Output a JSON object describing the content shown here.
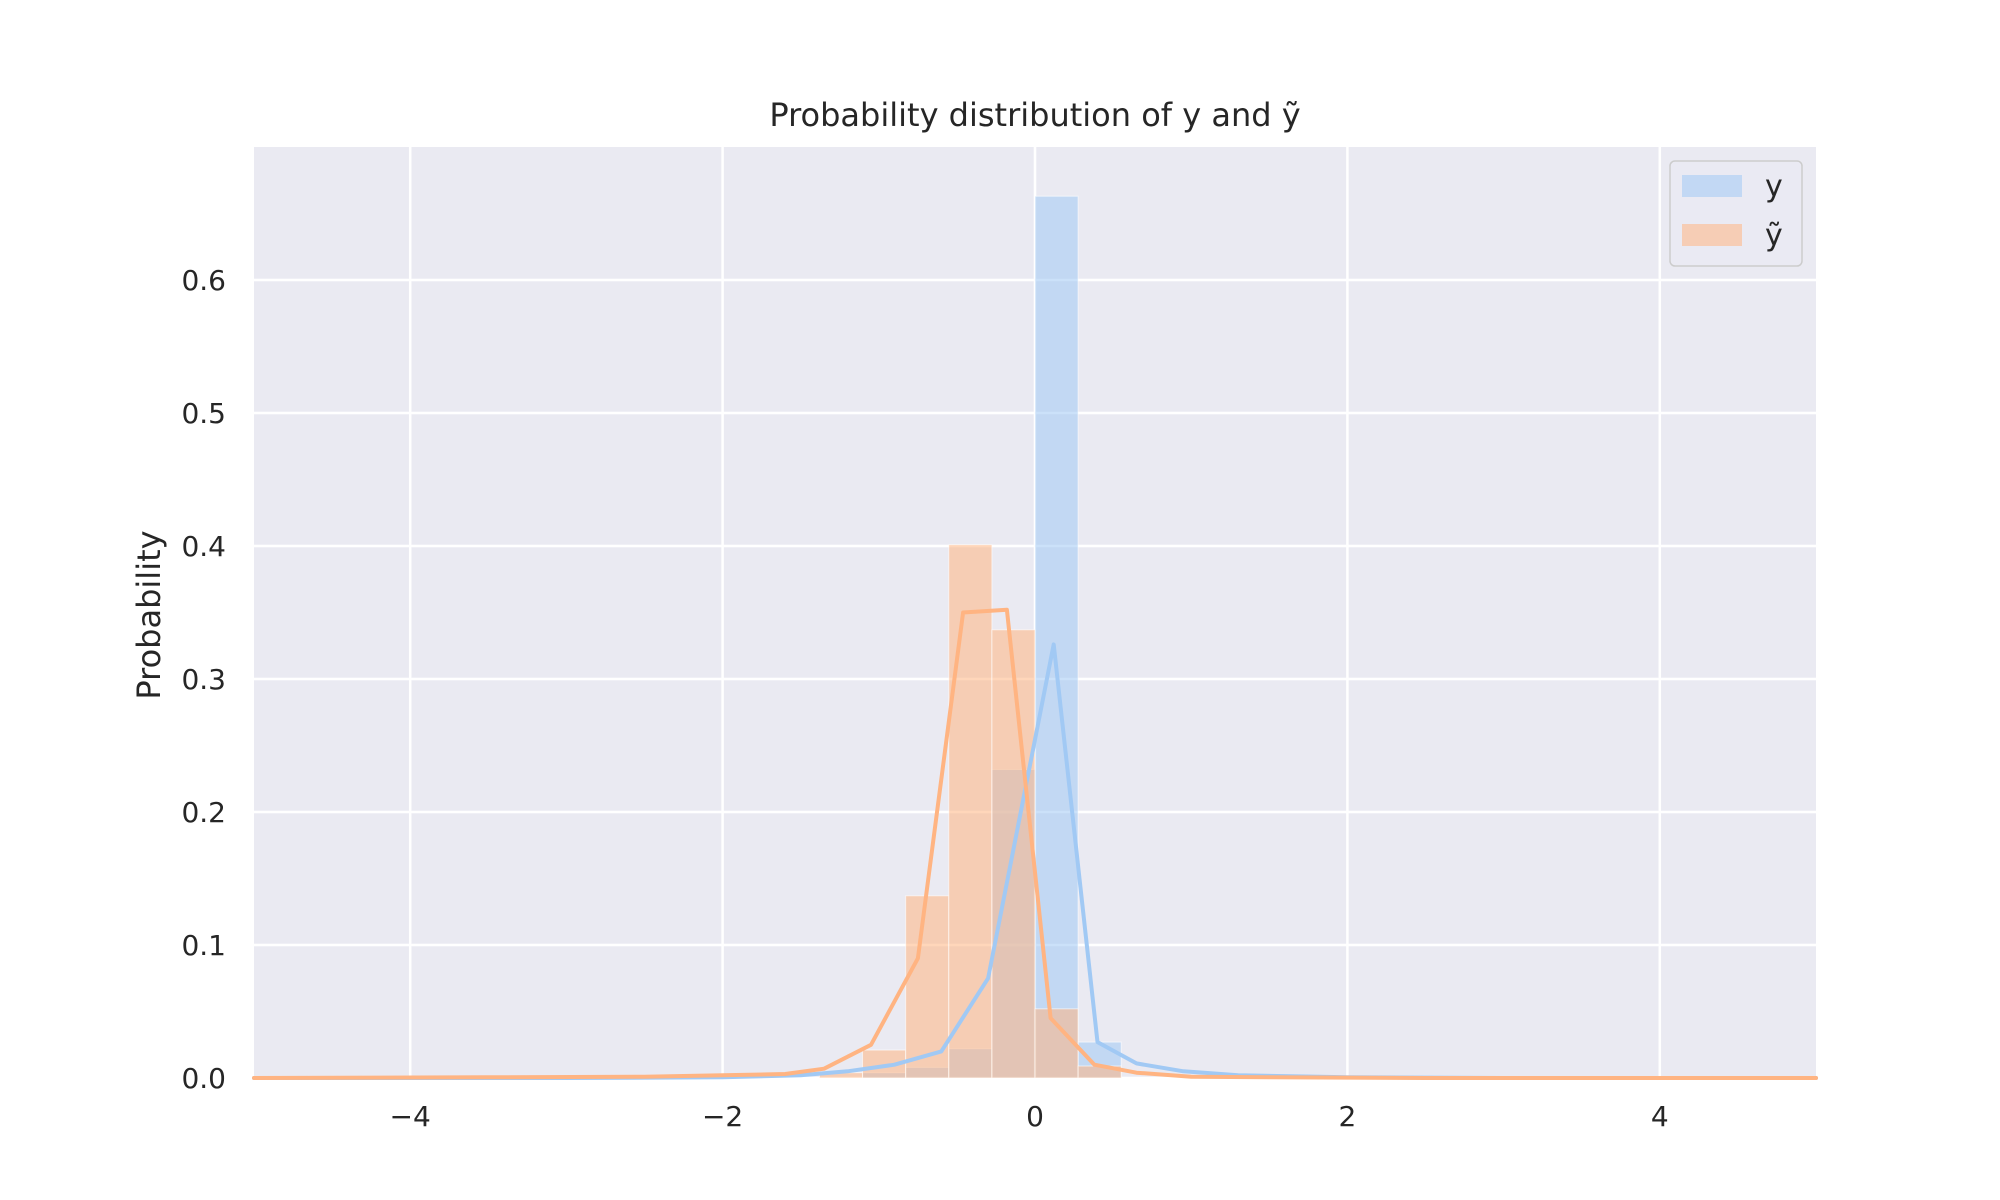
{
  "chart_data": {
    "type": "histogram",
    "title": "Probability distribution of y and ỹ",
    "xlabel": "",
    "ylabel": "Probability",
    "xlim": [
      -5,
      5
    ],
    "ylim": [
      0,
      0.7
    ],
    "xticks": [
      -4,
      -2,
      0,
      2,
      4
    ],
    "xtick_labels": [
      "−4",
      "−2",
      "0",
      "2",
      "4"
    ],
    "yticks": [
      0.0,
      0.1,
      0.2,
      0.3,
      0.4,
      0.5,
      0.6
    ],
    "ytick_labels": [
      "0.0",
      "0.1",
      "0.2",
      "0.3",
      "0.4",
      "0.5",
      "0.6"
    ],
    "grid": true,
    "legend_position": "top-right",
    "bin_width": 0.276,
    "series": [
      {
        "name": "y",
        "color": "#a1c9f4",
        "bin_left_edges": [
          -1.104,
          -0.828,
          -0.552,
          -0.276,
          0.0,
          0.276
        ],
        "bar_heights": [
          0.004,
          0.008,
          0.022,
          0.232,
          0.663,
          0.027
        ],
        "kde_x": [
          -5.0,
          -3.0,
          -2.0,
          -1.5,
          -1.2,
          -0.9,
          -0.6,
          -0.3,
          0.12,
          0.4,
          0.65,
          0.95,
          1.3,
          2.0,
          3.0,
          5.0
        ],
        "kde_y": [
          0.0,
          0.0,
          0.0005,
          0.002,
          0.005,
          0.01,
          0.02,
          0.075,
          0.326,
          0.027,
          0.011,
          0.005,
          0.002,
          0.0005,
          0.0,
          0.0
        ]
      },
      {
        "name": "ỹ",
        "color": "#ffb482",
        "bin_left_edges": [
          -1.38,
          -1.104,
          -0.828,
          -0.552,
          -0.276,
          0.0,
          0.276
        ],
        "bar_heights": [
          0.004,
          0.021,
          0.137,
          0.401,
          0.337,
          0.052,
          0.009
        ],
        "kde_x": [
          -5.0,
          -3.5,
          -2.5,
          -2.0,
          -1.6,
          -1.35,
          -1.05,
          -0.75,
          -0.46,
          -0.18,
          0.1,
          0.38,
          0.65,
          1.0,
          1.5,
          2.5,
          5.0
        ],
        "kde_y": [
          0.0,
          0.0005,
          0.001,
          0.002,
          0.003,
          0.007,
          0.025,
          0.09,
          0.35,
          0.352,
          0.045,
          0.01,
          0.004,
          0.001,
          0.0005,
          0.0,
          0.0
        ]
      }
    ]
  }
}
